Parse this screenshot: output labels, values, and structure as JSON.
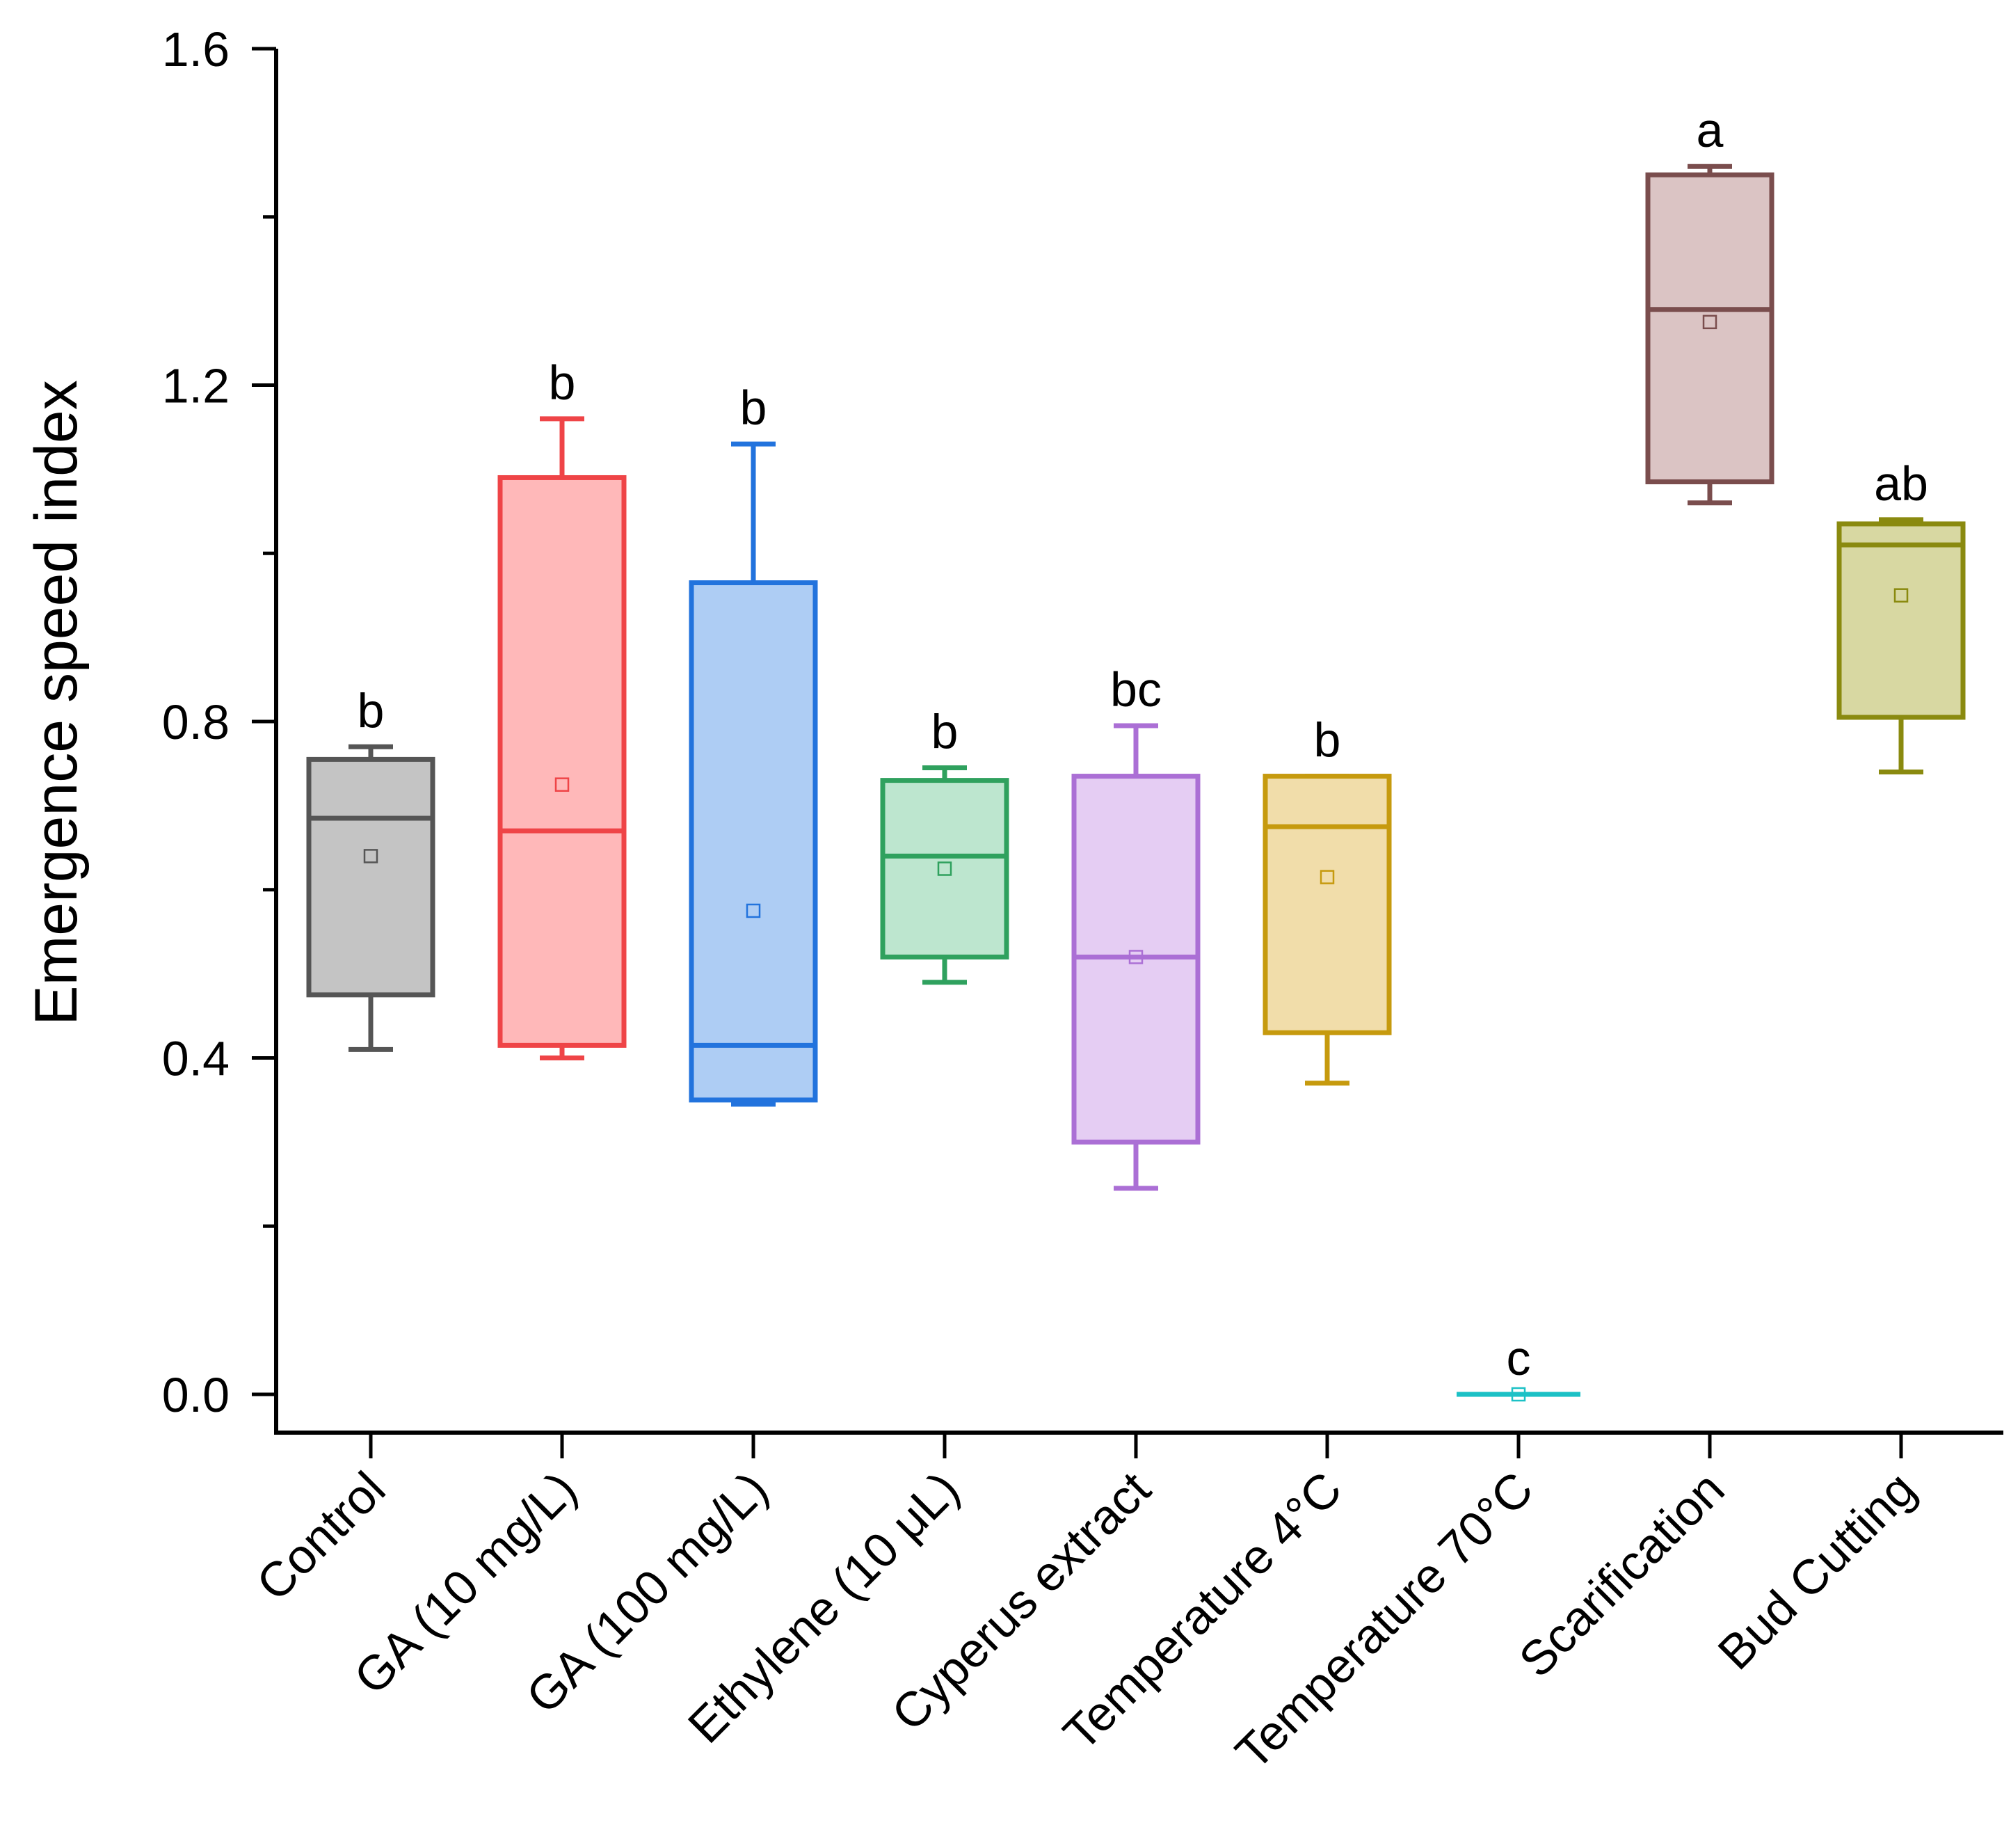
{
  "chart_data": {
    "type": "box",
    "title": "",
    "xlabel": "",
    "ylabel": "Emergence speed index",
    "ylim": [
      -0.1,
      1.65
    ],
    "y_ticks": [
      0.0,
      0.4,
      0.8,
      1.2,
      1.6
    ],
    "y_tick_labels": [
      "0.0",
      "0.4",
      "0.8",
      "1.2",
      "1.6"
    ],
    "y_minor_ticks": [
      0.2,
      0.6,
      1.0,
      1.4
    ],
    "grid": false,
    "categories": [
      {
        "name": "Control",
        "min": 0.41,
        "q1": 0.475,
        "median": 0.685,
        "q3": 0.755,
        "max": 0.77,
        "mean": 0.64,
        "letter": "b",
        "stroke": "#555555",
        "fill": "#c4c4c4"
      },
      {
        "name": "GA (10 mg/L)",
        "min": 0.4,
        "q1": 0.415,
        "median": 0.67,
        "q3": 1.09,
        "max": 1.16,
        "mean": 0.725,
        "letter": "b",
        "stroke": "#ef4447",
        "fill": "#ffb8b9"
      },
      {
        "name": "GA (100 mg/L)",
        "min": 0.345,
        "q1": 0.35,
        "median": 0.415,
        "q3": 0.965,
        "max": 1.13,
        "mean": 0.575,
        "letter": "b",
        "stroke": "#2273dd",
        "fill": "#aecdf4"
      },
      {
        "name": "Ethylene (10 μL)",
        "min": 0.49,
        "q1": 0.52,
        "median": 0.64,
        "q3": 0.73,
        "max": 0.745,
        "mean": 0.625,
        "letter": "b",
        "stroke": "#2fa15e",
        "fill": "#bde6cf"
      },
      {
        "name": "Cyperus extract",
        "min": 0.245,
        "q1": 0.3,
        "median": 0.52,
        "q3": 0.735,
        "max": 0.795,
        "mean": 0.52,
        "letter": "bc",
        "stroke": "#ab6fd5",
        "fill": "#e5cdf3"
      },
      {
        "name": "Temperature 4°C",
        "min": 0.37,
        "q1": 0.43,
        "median": 0.675,
        "q3": 0.735,
        "max": 0.735,
        "mean": 0.615,
        "letter": "b",
        "stroke": "#c69a0e",
        "fill": "#f1ddaa"
      },
      {
        "name": "Temperature 70°C",
        "min": 0.0,
        "q1": 0.0,
        "median": 0.0,
        "q3": 0.0,
        "max": 0.0,
        "mean": 0.0,
        "letter": "c",
        "stroke": "#1cc1c6",
        "fill": "#b6eced"
      },
      {
        "name": "Scarification",
        "min": 1.06,
        "q1": 1.085,
        "median": 1.29,
        "q3": 1.45,
        "max": 1.46,
        "mean": 1.275,
        "letter": "a",
        "stroke": "#7a4d4d",
        "fill": "#dbc4c4"
      },
      {
        "name": "Bud Cutting",
        "min": 0.74,
        "q1": 0.805,
        "median": 1.01,
        "q3": 1.035,
        "max": 1.04,
        "mean": 0.95,
        "letter": "ab",
        "stroke": "#8a8a0f",
        "fill": "#d8d8a2"
      }
    ]
  }
}
